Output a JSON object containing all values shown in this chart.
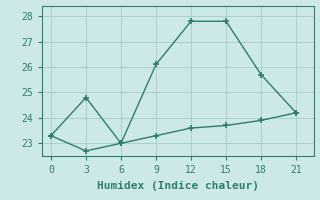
{
  "xlabel": "Humidex (Indice chaleur)",
  "ylabel": "",
  "x": [
    0,
    3,
    6,
    9,
    12,
    15,
    18,
    21
  ],
  "line1_y": [
    23.3,
    24.8,
    23.0,
    26.1,
    27.8,
    27.8,
    25.7,
    24.2
  ],
  "line2_y": [
    23.3,
    22.7,
    23.0,
    23.3,
    23.6,
    23.7,
    23.9,
    24.2
  ],
  "line_color": "#2e7d6e",
  "bg_color": "#cce8e8",
  "grid_color": "#aacece",
  "ylim": [
    22.5,
    28.4
  ],
  "xlim": [
    -0.8,
    22.5
  ],
  "yticks": [
    23,
    24,
    25,
    26,
    27,
    28
  ],
  "xticks": [
    0,
    3,
    6,
    9,
    12,
    15,
    18,
    21
  ],
  "marker": "+",
  "markersize": 5,
  "linewidth": 1.0,
  "xlabel_fontsize": 8,
  "tick_fontsize": 7
}
